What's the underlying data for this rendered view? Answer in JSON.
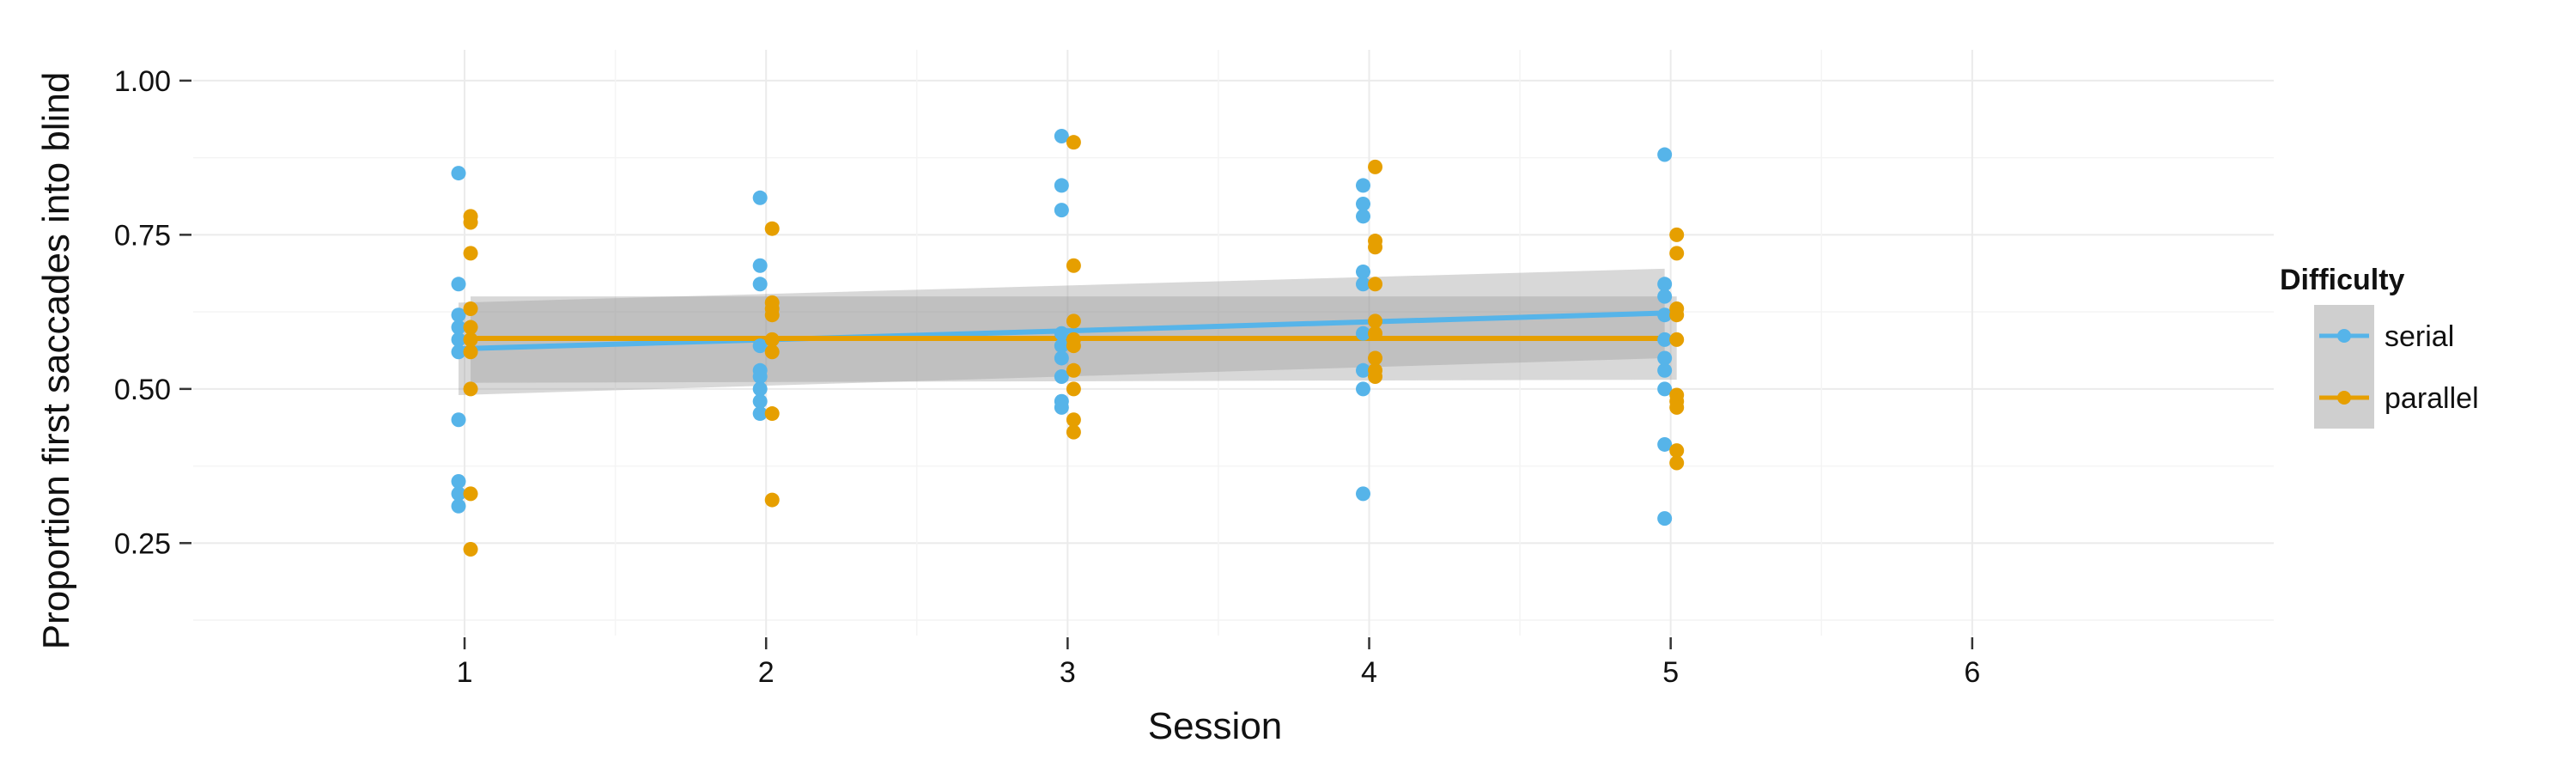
{
  "chart_data": {
    "type": "scatter",
    "title": "",
    "xlabel": "Session",
    "ylabel": "Proportion first saccades into blind",
    "xlim": [
      0.1,
      7.0
    ],
    "ylim": [
      0.1,
      1.05
    ],
    "x_ticks": [
      {
        "value": 1,
        "label": "1"
      },
      {
        "value": 2,
        "label": "2"
      },
      {
        "value": 3,
        "label": "3"
      },
      {
        "value": 4,
        "label": "4"
      },
      {
        "value": 5,
        "label": "5"
      },
      {
        "value": 6,
        "label": "6"
      }
    ],
    "y_ticks": [
      {
        "value": 1.0,
        "label": "1.00"
      },
      {
        "value": 0.75,
        "label": "0.75"
      },
      {
        "value": 0.5,
        "label": "0.50"
      },
      {
        "value": 0.25,
        "label": "0.25"
      }
    ],
    "grid": true,
    "legend": {
      "title": "Difficulty",
      "position": "right"
    },
    "series": [
      {
        "name": "serial",
        "color": "#56B4E9",
        "points": [
          [
            0.98,
            0.85
          ],
          [
            0.98,
            0.67
          ],
          [
            0.98,
            0.62
          ],
          [
            0.98,
            0.6
          ],
          [
            0.98,
            0.58
          ],
          [
            0.98,
            0.56
          ],
          [
            0.98,
            0.45
          ],
          [
            0.98,
            0.35
          ],
          [
            0.98,
            0.33
          ],
          [
            0.98,
            0.31
          ],
          [
            1.98,
            0.81
          ],
          [
            1.98,
            0.7
          ],
          [
            1.98,
            0.67
          ],
          [
            1.98,
            0.57
          ],
          [
            1.98,
            0.53
          ],
          [
            1.98,
            0.52
          ],
          [
            1.98,
            0.5
          ],
          [
            1.98,
            0.48
          ],
          [
            1.98,
            0.46
          ],
          [
            2.98,
            0.91
          ],
          [
            2.98,
            0.83
          ],
          [
            2.98,
            0.79
          ],
          [
            2.98,
            0.59
          ],
          [
            2.98,
            0.57
          ],
          [
            2.98,
            0.55
          ],
          [
            2.98,
            0.52
          ],
          [
            2.98,
            0.48
          ],
          [
            2.98,
            0.47
          ],
          [
            3.98,
            0.83
          ],
          [
            3.98,
            0.8
          ],
          [
            3.98,
            0.78
          ],
          [
            3.98,
            0.69
          ],
          [
            3.98,
            0.67
          ],
          [
            3.98,
            0.59
          ],
          [
            3.98,
            0.53
          ],
          [
            3.98,
            0.5
          ],
          [
            3.98,
            0.33
          ],
          [
            4.98,
            0.88
          ],
          [
            4.98,
            0.67
          ],
          [
            4.98,
            0.65
          ],
          [
            4.98,
            0.62
          ],
          [
            4.98,
            0.58
          ],
          [
            4.98,
            0.55
          ],
          [
            4.98,
            0.53
          ],
          [
            4.98,
            0.5
          ],
          [
            4.98,
            0.41
          ],
          [
            4.98,
            0.29
          ]
        ],
        "fit": {
          "x": [
            0.98,
            4.98
          ],
          "y": [
            0.565,
            0.623
          ],
          "ci_lower": [
            0.49,
            0.55
          ],
          "ci_upper": [
            0.64,
            0.695
          ]
        }
      },
      {
        "name": "parallel",
        "color": "#E69F00",
        "points": [
          [
            1.02,
            0.78
          ],
          [
            1.02,
            0.77
          ],
          [
            1.02,
            0.72
          ],
          [
            1.02,
            0.63
          ],
          [
            1.02,
            0.6
          ],
          [
            1.02,
            0.58
          ],
          [
            1.02,
            0.56
          ],
          [
            1.02,
            0.5
          ],
          [
            1.02,
            0.33
          ],
          [
            1.02,
            0.24
          ],
          [
            2.02,
            0.76
          ],
          [
            2.02,
            0.64
          ],
          [
            2.02,
            0.63
          ],
          [
            2.02,
            0.62
          ],
          [
            2.02,
            0.58
          ],
          [
            2.02,
            0.56
          ],
          [
            2.02,
            0.46
          ],
          [
            2.02,
            0.32
          ],
          [
            3.02,
            0.9
          ],
          [
            3.02,
            0.7
          ],
          [
            3.02,
            0.61
          ],
          [
            3.02,
            0.58
          ],
          [
            3.02,
            0.57
          ],
          [
            3.02,
            0.53
          ],
          [
            3.02,
            0.5
          ],
          [
            3.02,
            0.45
          ],
          [
            3.02,
            0.43
          ],
          [
            4.02,
            0.86
          ],
          [
            4.02,
            0.74
          ],
          [
            4.02,
            0.73
          ],
          [
            4.02,
            0.67
          ],
          [
            4.02,
            0.61
          ],
          [
            4.02,
            0.59
          ],
          [
            4.02,
            0.55
          ],
          [
            4.02,
            0.53
          ],
          [
            4.02,
            0.52
          ],
          [
            5.02,
            0.75
          ],
          [
            5.02,
            0.72
          ],
          [
            5.02,
            0.63
          ],
          [
            5.02,
            0.62
          ],
          [
            5.02,
            0.58
          ],
          [
            5.02,
            0.49
          ],
          [
            5.02,
            0.48
          ],
          [
            5.02,
            0.47
          ],
          [
            5.02,
            0.4
          ],
          [
            5.02,
            0.38
          ]
        ],
        "fit": {
          "x": [
            1.02,
            5.02
          ],
          "y": [
            0.582,
            0.582
          ],
          "ci_lower": [
            0.51,
            0.515
          ],
          "ci_upper": [
            0.65,
            0.65
          ]
        }
      }
    ]
  }
}
